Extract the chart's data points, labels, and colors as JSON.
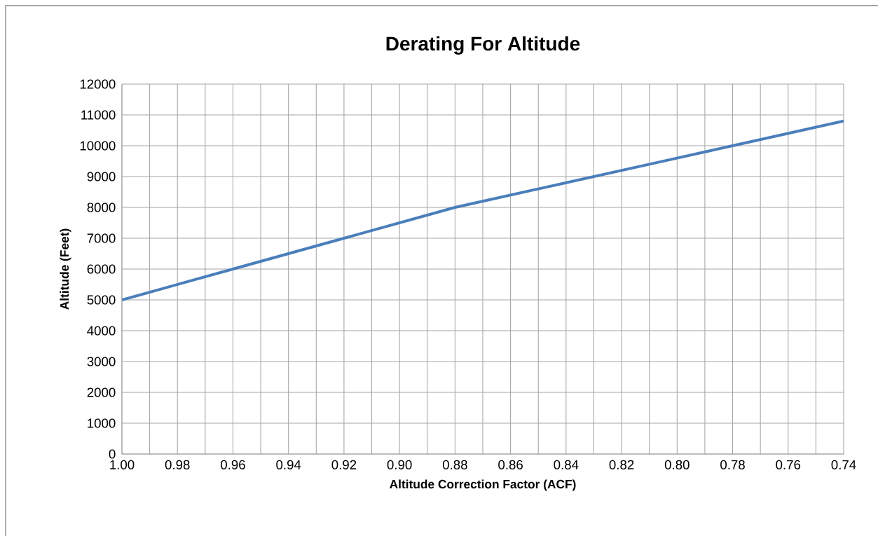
{
  "chart_data": {
    "type": "line",
    "title": "Derating For Altitude",
    "xlabel": "Altitude Correction Factor (ACF)",
    "ylabel": "Altitude (Feet)",
    "x": [
      1.0,
      0.96,
      0.92,
      0.88,
      0.84,
      0.8,
      0.78,
      0.74
    ],
    "series": [
      {
        "color": "#4a7ebb",
        "values": [
          5000,
          6000,
          7000,
          8000,
          8800,
          9600,
          10000,
          10800
        ]
      }
    ],
    "xlim": [
      1.0,
      0.74
    ],
    "xticks": [
      {
        "value": 1.0,
        "label": "1.00"
      },
      {
        "value": 0.99,
        "label": null
      },
      {
        "value": 0.98,
        "label": "0.98"
      },
      {
        "value": 0.97,
        "label": null
      },
      {
        "value": 0.96,
        "label": "0.96"
      },
      {
        "value": 0.95,
        "label": null
      },
      {
        "value": 0.94,
        "label": "0.94"
      },
      {
        "value": 0.93,
        "label": null
      },
      {
        "value": 0.92,
        "label": "0.92"
      },
      {
        "value": 0.91,
        "label": null
      },
      {
        "value": 0.9,
        "label": "0.90"
      },
      {
        "value": 0.89,
        "label": null
      },
      {
        "value": 0.88,
        "label": "0.88"
      },
      {
        "value": 0.87,
        "label": null
      },
      {
        "value": 0.86,
        "label": "0.86"
      },
      {
        "value": 0.85,
        "label": null
      },
      {
        "value": 0.84,
        "label": "0.84"
      },
      {
        "value": 0.83,
        "label": null
      },
      {
        "value": 0.82,
        "label": "0.82"
      },
      {
        "value": 0.81,
        "label": null
      },
      {
        "value": 0.8,
        "label": "0.80"
      },
      {
        "value": 0.79,
        "label": null
      },
      {
        "value": 0.78,
        "label": "0.78"
      },
      {
        "value": 0.77,
        "label": null
      },
      {
        "value": 0.76,
        "label": "0.76"
      },
      {
        "value": 0.75,
        "label": null
      },
      {
        "value": 0.74,
        "label": "0.74"
      }
    ],
    "ylim": [
      0,
      12000
    ],
    "yticks": [
      0,
      1000,
      2000,
      3000,
      4000,
      5000,
      6000,
      7000,
      8000,
      9000,
      10000,
      11000,
      12000
    ],
    "grid": true,
    "marker": "none",
    "line_style": "solid"
  }
}
